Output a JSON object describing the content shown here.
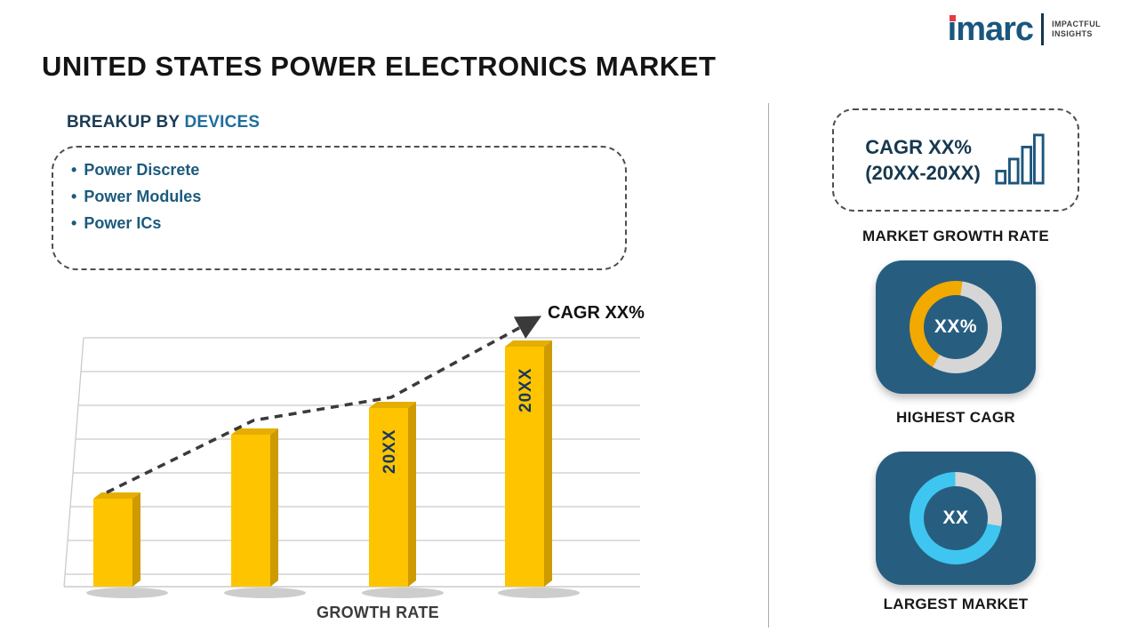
{
  "logo": {
    "brand": "imarc",
    "tagline": [
      "IMPACTFUL",
      "INSIGHTS"
    ]
  },
  "title": "UNITED STATES POWER ELECTRONICS MARKET",
  "breakup": {
    "prefix": "BREAKUP BY",
    "highlight": "DEVICES",
    "items": [
      "Power Discrete",
      "Power Modules",
      "Power ICs"
    ]
  },
  "chart_data": {
    "type": "bar",
    "title": "GROWTH RATE",
    "xlabel": "GROWTH RATE",
    "categories": [
      "",
      "",
      "20XX",
      "20XX"
    ],
    "values": [
      2.6,
      4.5,
      5.3,
      7.1
    ],
    "value_units": "relative (axis unlabeled, estimated in gridline units)",
    "bar_labels": [
      "",
      "",
      "20XX",
      "20XX"
    ],
    "bar_color": "#FFC400",
    "trend": {
      "style": "dashed-arrow",
      "label": "CAGR XX%"
    },
    "grid": true,
    "legend": false
  },
  "sidebar": {
    "growth_card": {
      "line1": "CAGR XX%",
      "line2": "(20XX-20XX)"
    },
    "growth_caption": "MARKET GROWTH RATE",
    "highest_cagr": {
      "value": "XX%",
      "caption": "HIGHEST CAGR",
      "ring_color": "#F2A900",
      "ring_pct": 44
    },
    "largest_market": {
      "value": "XX",
      "caption": "LARGEST MARKET",
      "ring_color": "#3EC6F0",
      "ring_pct": 72
    }
  },
  "colors": {
    "accent_blue": "#1C5A7D",
    "card_blue": "#275E80",
    "bar_gold": "#FFC400",
    "logo_red": "#E63946",
    "ring_gray": "#D6D6D6"
  }
}
